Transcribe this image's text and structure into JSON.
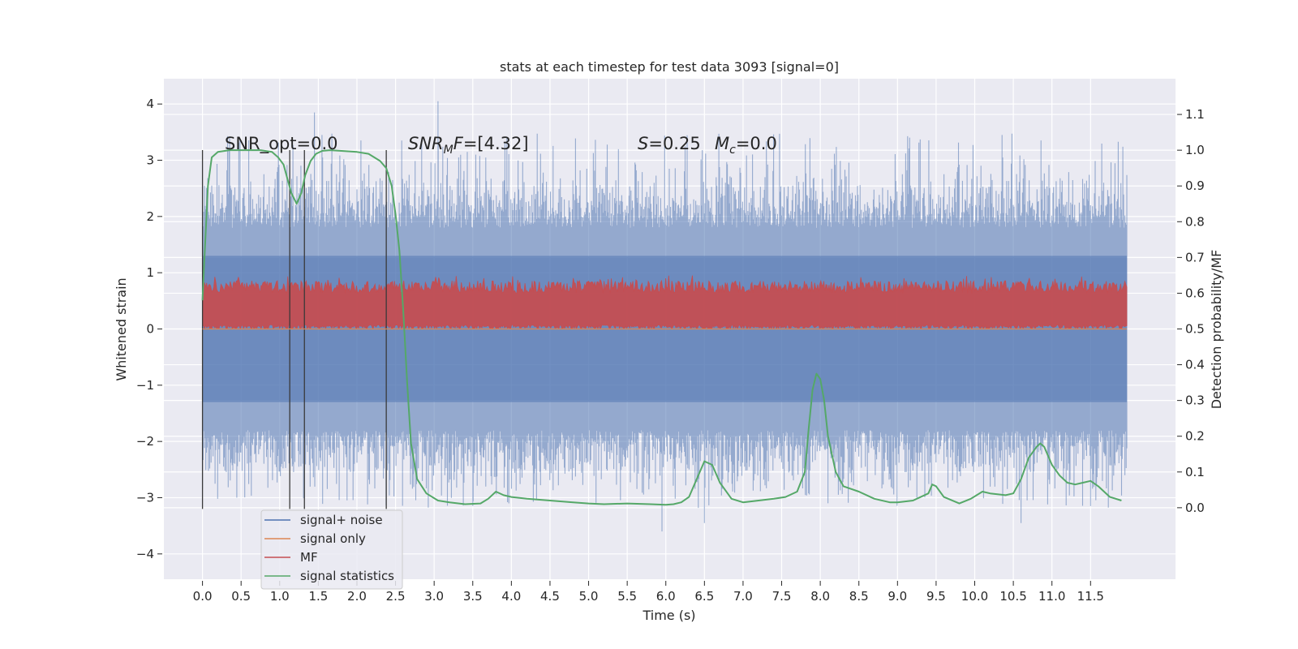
{
  "chart_data": {
    "type": "line",
    "title": "stats at each timestep for test data 3093 [signal=0]",
    "xlabel": "Time (s)",
    "ylabel": "Whitened strain",
    "y2label": "Detection probability/MF",
    "xlim": [
      -0.5,
      12.6
    ],
    "ylim": [
      -4.45,
      4.45
    ],
    "y2lim": [
      -0.2,
      1.2
    ],
    "grid": true,
    "legend_position": "lower-left",
    "x_ticks": [
      "0.0",
      "0.5",
      "1.0",
      "1.5",
      "2.0",
      "2.5",
      "3.0",
      "3.5",
      "4.0",
      "4.5",
      "5.0",
      "5.5",
      "6.0",
      "6.5",
      "7.0",
      "7.5",
      "8.0",
      "8.5",
      "9.0",
      "9.5",
      "10.0",
      "10.5",
      "11.0",
      "11.5"
    ],
    "y_ticks": [
      "4",
      "3",
      "2",
      "1",
      "0",
      "−1",
      "−2",
      "−3",
      "−4"
    ],
    "y2_ticks": [
      "1.1",
      "1.0",
      "0.9",
      "0.8",
      "0.7",
      "0.6",
      "0.5",
      "0.4",
      "0.3",
      "0.2",
      "0.1",
      "0.0"
    ],
    "annotations": {
      "snr_opt": "SNR_opt=0.0",
      "snr_mf_italic": "SNR",
      "snr_mf_sub": "M",
      "snr_mf_italic2": "F",
      "snr_mf_value": "=[4.32]",
      "s_italic": "S",
      "s_value": "=0.25",
      "mc_italic": "M",
      "mc_sub": "c",
      "mc_value": "=0.0"
    },
    "vertical_lines_x": [
      0.0,
      1.13,
      1.32,
      2.38
    ],
    "series": [
      {
        "name": "signal+ noise",
        "color": "#4c72b0",
        "axis": "left",
        "style": "noise_band",
        "x_range": [
          0.0,
          11.97
        ],
        "dense_range": [
          -1.3,
          1.3
        ],
        "peak_range": [
          -3.6,
          4.05
        ],
        "peaks": [
          [
            0.12,
            2.55
          ],
          [
            1.45,
            3.85
          ],
          [
            3.05,
            4.05
          ],
          [
            2.58,
            3.35
          ],
          [
            6.25,
            3.25
          ],
          [
            5.95,
            -3.6
          ],
          [
            10.6,
            -3.45
          ],
          [
            11.5,
            -3.15
          ],
          [
            3.5,
            -3.15
          ],
          [
            6.5,
            -3.45
          ],
          [
            8.1,
            -3.1
          ]
        ]
      },
      {
        "name": "signal only",
        "color": "#dd8452",
        "axis": "left",
        "style": "line",
        "x": [
          0.0,
          11.97
        ],
        "y": [
          0.0,
          0.0
        ]
      },
      {
        "name": "MF",
        "color": "#c44e52",
        "axis": "right",
        "style": "mf_band",
        "x_range": [
          0.0,
          11.97
        ],
        "band_range": [
          0.5,
          0.62
        ],
        "max": 0.65
      },
      {
        "name": "signal statistics",
        "color": "#55a868",
        "axis": "right",
        "style": "line",
        "x": [
          0.0,
          0.03,
          0.07,
          0.12,
          0.2,
          0.35,
          0.55,
          0.75,
          0.9,
          0.98,
          1.05,
          1.1,
          1.15,
          1.22,
          1.28,
          1.33,
          1.4,
          1.47,
          1.55,
          1.65,
          1.8,
          2.0,
          2.15,
          2.3,
          2.38,
          2.45,
          2.5,
          2.55,
          2.6,
          2.65,
          2.7,
          2.78,
          2.9,
          3.05,
          3.2,
          3.4,
          3.6,
          3.7,
          3.8,
          3.9,
          4.0,
          4.2,
          4.5,
          4.8,
          5.0,
          5.2,
          5.5,
          5.8,
          6.0,
          6.1,
          6.2,
          6.3,
          6.4,
          6.5,
          6.6,
          6.7,
          6.85,
          7.0,
          7.2,
          7.4,
          7.55,
          7.7,
          7.8,
          7.85,
          7.9,
          7.95,
          8.0,
          8.05,
          8.1,
          8.2,
          8.3,
          8.5,
          8.7,
          8.9,
          9.0,
          9.2,
          9.4,
          9.45,
          9.5,
          9.6,
          9.8,
          9.95,
          10.1,
          10.2,
          10.4,
          10.5,
          10.6,
          10.7,
          10.8,
          10.85,
          10.9,
          11.0,
          11.1,
          11.2,
          11.3,
          11.4,
          11.5,
          11.6,
          11.75,
          11.9
        ],
        "y": [
          0.58,
          0.72,
          0.9,
          0.98,
          0.995,
          1.0,
          1.0,
          1.0,
          0.995,
          0.98,
          0.96,
          0.92,
          0.88,
          0.85,
          0.88,
          0.93,
          0.97,
          0.99,
          0.998,
          1.0,
          0.998,
          0.995,
          0.99,
          0.97,
          0.95,
          0.9,
          0.82,
          0.72,
          0.55,
          0.35,
          0.18,
          0.08,
          0.04,
          0.02,
          0.015,
          0.01,
          0.012,
          0.025,
          0.045,
          0.035,
          0.03,
          0.025,
          0.02,
          0.015,
          0.012,
          0.01,
          0.012,
          0.01,
          0.008,
          0.01,
          0.015,
          0.03,
          0.08,
          0.13,
          0.12,
          0.07,
          0.025,
          0.015,
          0.02,
          0.025,
          0.03,
          0.045,
          0.1,
          0.22,
          0.33,
          0.375,
          0.36,
          0.3,
          0.2,
          0.1,
          0.06,
          0.045,
          0.025,
          0.015,
          0.015,
          0.02,
          0.04,
          0.065,
          0.06,
          0.03,
          0.012,
          0.025,
          0.045,
          0.04,
          0.035,
          0.04,
          0.08,
          0.14,
          0.17,
          0.18,
          0.17,
          0.12,
          0.09,
          0.07,
          0.065,
          0.07,
          0.075,
          0.06,
          0.03,
          0.02
        ]
      }
    ]
  }
}
